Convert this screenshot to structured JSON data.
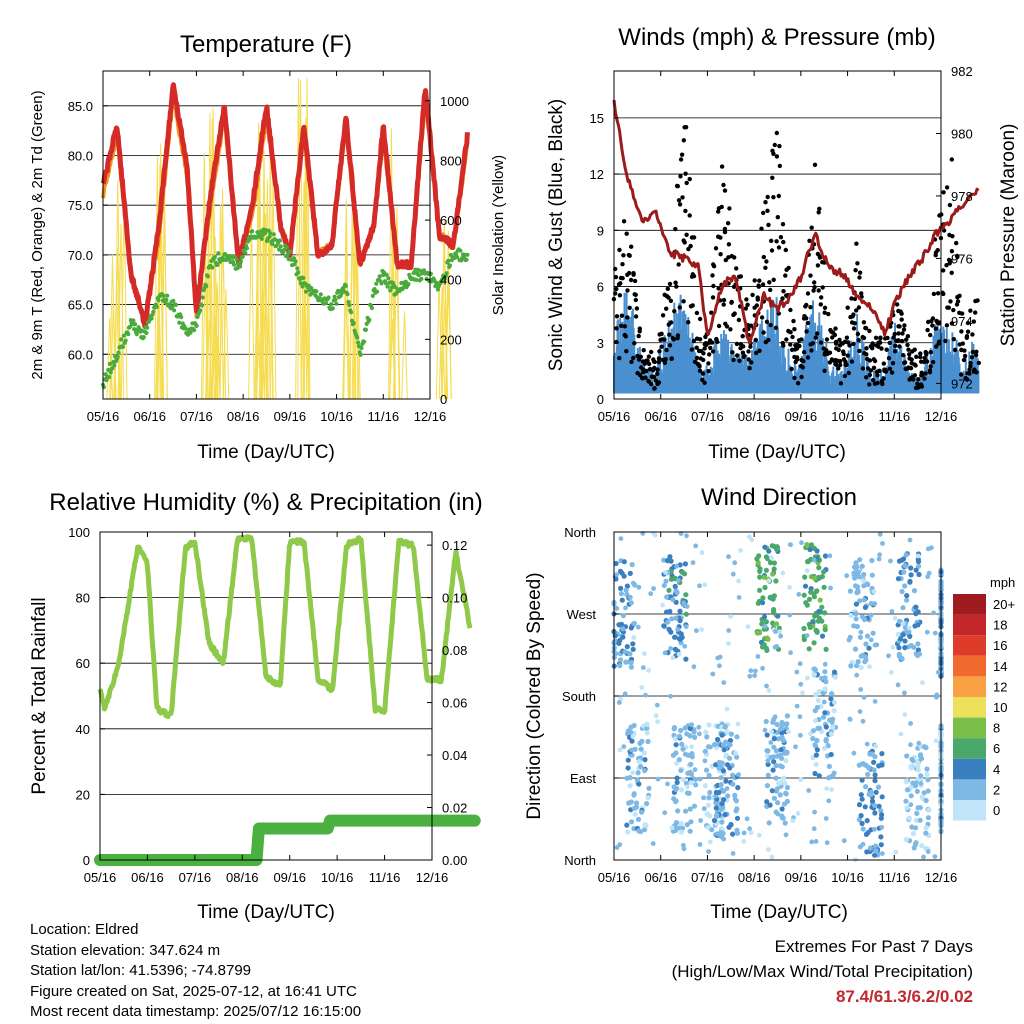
{
  "panels": {
    "temperature": {
      "title": "Temperature (F)",
      "ylabel_left": "2m & 9m T (Red, Orange) & 2m Td (Green)",
      "ylabel_right": "Solar Insolation (Yellow)",
      "xlabel": "Time (Day/UTC)"
    },
    "winds": {
      "title": "Winds (mph) & Pressure (mb)",
      "ylabel_left": "Sonic Wind & Gust (Blue, Black)",
      "ylabel_right": "Station Pressure (Maroon)",
      "xlabel": "Time (Day/UTC)"
    },
    "humidity": {
      "title": "Relative Humidity (%) & Precipitation (in)",
      "ylabel_left": "Percent & Total Rainfall",
      "xlabel": "Time (Day/UTC)"
    },
    "direction": {
      "title": "Wind Direction",
      "ylabel_left": "Direction (Colored By Speed)",
      "xlabel": "Time (Day/UTC)"
    }
  },
  "x_ticks": [
    "05/16",
    "06/16",
    "07/16",
    "08/16",
    "09/16",
    "10/16",
    "11/16",
    "12/16"
  ],
  "legend": {
    "title": "mph",
    "labels": [
      "20+",
      "18",
      "16",
      "14",
      "12",
      "10",
      "8",
      "6",
      "4",
      "2",
      "0"
    ],
    "colors": [
      "#9e1b1f",
      "#c3262a",
      "#de3b2a",
      "#f26b2e",
      "#f9a044",
      "#ede05b",
      "#7bbf4b",
      "#4aa86a",
      "#3a7fc0",
      "#7eb8e4",
      "#c0e4f8"
    ]
  },
  "info": {
    "location": "Location: Eldred",
    "elevation": "Station elevation: 347.624 m",
    "latlon": "Station lat/lon: 41.5396; -74.8799",
    "created": "Figure created on Sat, 2025-07-12, at 16:41 UTC",
    "latest": "Most recent data timestamp: 2025/07/12 16:15:00"
  },
  "extremes": {
    "line1": "Extremes For Past 7 Days",
    "line2": "(High/Low/Max Wind/Total Precipitation)",
    "values": "87.4/61.3/6.2/0.02"
  },
  "chart_data": [
    {
      "type": "line",
      "title": "Temperature (F)",
      "xlabel": "Time (Day/UTC)",
      "x_categories": [
        "05/16",
        "06/16",
        "07/16",
        "08/16",
        "09/16",
        "10/16",
        "11/16",
        "12/16"
      ],
      "ylim": [
        55.5,
        88.5
      ],
      "yticks": [
        60.0,
        65.0,
        70.0,
        75.0,
        80.0,
        85.0
      ],
      "y2lim": [
        0,
        1100
      ],
      "y2ticks": [
        0,
        200,
        400,
        600,
        800,
        1000
      ],
      "grid": true,
      "series": [
        {
          "name": "2m T",
          "color": "#d42a28",
          "x": [
            5.0,
            5.3,
            5.6,
            5.9,
            6.2,
            6.5,
            6.8,
            7.0,
            7.3,
            7.6,
            7.9,
            8.2,
            8.5,
            8.8,
            9.0,
            9.3,
            9.6,
            9.9,
            10.2,
            10.5,
            10.8,
            11.0,
            11.3,
            11.6,
            11.9,
            12.2,
            12.5,
            12.8
          ],
          "y": [
            77,
            83,
            68,
            63,
            73,
            87,
            79,
            64,
            76,
            85,
            69,
            75,
            85,
            73,
            70,
            83,
            70,
            71,
            84,
            69,
            73,
            83,
            69,
            69,
            87,
            72,
            71,
            82
          ]
        },
        {
          "name": "9m T",
          "color": "#f4921e",
          "x": [
            5.0,
            5.3,
            5.6,
            5.9,
            6.2,
            6.5,
            6.8,
            7.0,
            7.3,
            7.6,
            7.9,
            8.2,
            8.5,
            8.8,
            9.0,
            9.3,
            9.6,
            9.9,
            10.2,
            10.5,
            10.8,
            11.0,
            11.3,
            11.6,
            11.9,
            12.2,
            12.5,
            12.8
          ],
          "y": [
            76,
            82,
            68,
            63,
            72,
            86,
            78,
            64,
            75,
            84,
            69,
            74,
            84,
            73,
            70,
            82,
            70,
            71,
            83,
            69,
            73,
            82,
            69,
            69,
            86,
            72,
            71,
            81
          ]
        },
        {
          "name": "2m Td",
          "color": "#4aaa3a",
          "x": [
            5.0,
            5.3,
            5.6,
            5.9,
            6.2,
            6.5,
            6.8,
            7.0,
            7.3,
            7.6,
            7.9,
            8.2,
            8.5,
            8.8,
            9.0,
            9.3,
            9.6,
            9.9,
            10.2,
            10.5,
            10.8,
            11.0,
            11.3,
            11.6,
            11.9,
            12.2,
            12.5,
            12.8
          ],
          "y": [
            57,
            60,
            63,
            62,
            66,
            65,
            62,
            63,
            69,
            70,
            69,
            72,
            72,
            71,
            70,
            67,
            66,
            65,
            67,
            60,
            66,
            68,
            66,
            68,
            68,
            67,
            70,
            70
          ]
        },
        {
          "name": "Solar Insolation",
          "axis": "right",
          "color": "#f5dc50",
          "x": [
            5.3,
            6.3,
            7.3,
            7.5,
            8.3,
            8.5,
            9.3,
            10.3,
            11.3,
            12.3
          ],
          "y": [
            920,
            870,
            1000,
            750,
            950,
            850,
            1080,
            780,
            1000,
            720
          ]
        }
      ]
    },
    {
      "type": "line",
      "title": "Winds (mph) & Pressure (mb)",
      "xlabel": "Time (Day/UTC)",
      "x_categories": [
        "05/16",
        "06/16",
        "07/16",
        "08/16",
        "09/16",
        "10/16",
        "11/16",
        "12/16"
      ],
      "ylim": [
        0,
        17.5
      ],
      "yticks": [
        0,
        3,
        6,
        9,
        12,
        15
      ],
      "y2lim": [
        971.5,
        982
      ],
      "y2ticks": [
        972,
        974,
        976,
        978,
        980,
        982
      ],
      "grid": true,
      "series": [
        {
          "name": "Station Pressure",
          "axis": "right",
          "color": "#9b1b1b",
          "x": [
            5.0,
            5.3,
            5.6,
            5.9,
            6.2,
            6.5,
            6.8,
            7.0,
            7.3,
            7.6,
            7.9,
            8.2,
            8.5,
            8.8,
            9.0,
            9.3,
            9.6,
            9.9,
            10.2,
            10.5,
            10.8,
            11.0,
            11.3,
            11.6,
            11.9,
            12.2,
            12.5,
            12.8
          ],
          "y": [
            981,
            978.5,
            977.2,
            977.4,
            976.2,
            976,
            975.8,
            973.5,
            975.1,
            975.5,
            973.2,
            974.8,
            974.4,
            974.8,
            975.4,
            976.8,
            975.7,
            975.5,
            974.8,
            974.4,
            973.6,
            974.5,
            975.4,
            976,
            976.8,
            977.2,
            977.8,
            978.2
          ]
        },
        {
          "name": "Sonic Wind",
          "color": "#4a90d0",
          "x": [
            5.0,
            5.3,
            5.6,
            5.9,
            6.2,
            6.5,
            6.8,
            7.0,
            7.3,
            7.6,
            7.9,
            8.2,
            8.5,
            8.8,
            9.0,
            9.3,
            9.6,
            9.9,
            10.2,
            10.5,
            10.8,
            11.0,
            11.3,
            11.6,
            11.9,
            12.2,
            12.5,
            12.8
          ],
          "y": [
            2.5,
            4.5,
            1.5,
            1.2,
            3.5,
            4.0,
            1.5,
            1.2,
            3.0,
            1.8,
            1.6,
            3.5,
            4.0,
            1.2,
            1.6,
            4.5,
            1.5,
            1.2,
            3.2,
            1.0,
            1.2,
            2.8,
            1.2,
            1.0,
            3.0,
            2.8,
            1.4,
            2.6
          ]
        },
        {
          "name": "Gust",
          "color": "#000000",
          "x": [
            5.0,
            5.3,
            5.6,
            5.9,
            6.2,
            6.5,
            6.8,
            7.0,
            7.3,
            7.6,
            7.9,
            8.2,
            8.5,
            8.8,
            9.0,
            9.3,
            9.6,
            9.9,
            10.2,
            10.5,
            10.8,
            11.0,
            11.3,
            11.6,
            11.9,
            12.2,
            12.5,
            12.8
          ],
          "y": [
            8,
            9,
            3,
            2,
            7,
            15,
            4,
            3,
            12,
            7,
            4,
            10,
            14,
            4,
            3,
            12,
            4,
            3,
            8,
            3,
            3,
            6,
            3,
            2,
            9,
            12,
            3,
            6
          ]
        }
      ]
    },
    {
      "type": "line",
      "title": "Relative Humidity (%) & Precipitation (in)",
      "xlabel": "Time (Day/UTC)",
      "x_categories": [
        "05/16",
        "06/16",
        "07/16",
        "08/16",
        "09/16",
        "10/16",
        "11/16",
        "12/16"
      ],
      "ylim": [
        0,
        100
      ],
      "yticks": [
        0,
        20,
        40,
        60,
        80,
        100
      ],
      "y2lim": [
        0,
        0.125
      ],
      "y2ticks": [
        0.0,
        0.02,
        0.04,
        0.06,
        0.08,
        0.1,
        0.12
      ],
      "grid": true,
      "series": [
        {
          "name": "Relative Humidity",
          "color": "#8fc94a",
          "x": [
            5.0,
            5.1,
            5.4,
            5.8,
            6.0,
            6.2,
            6.5,
            6.8,
            7.0,
            7.3,
            7.6,
            7.9,
            8.2,
            8.5,
            8.8,
            9.0,
            9.3,
            9.6,
            9.9,
            10.2,
            10.5,
            10.8,
            11.0,
            11.3,
            11.6,
            11.9,
            12.2,
            12.5,
            12.8
          ],
          "y": [
            52,
            46,
            60,
            96,
            90,
            46,
            44,
            95,
            97,
            66,
            60,
            98,
            98,
            56,
            53,
            97,
            97,
            55,
            52,
            96,
            98,
            46,
            45,
            97,
            96,
            55,
            55,
            94,
            71
          ]
        },
        {
          "name": "Total Precipitation",
          "axis": "right",
          "color": "#4ab140",
          "x": [
            5.0,
            8.3,
            8.35,
            9.8,
            9.85,
            12.9
          ],
          "y": [
            0.0,
            0.0,
            0.012,
            0.012,
            0.015,
            0.015
          ]
        }
      ]
    },
    {
      "type": "scatter",
      "title": "Wind Direction",
      "xlabel": "Time (Day/UTC)",
      "x_categories": [
        "05/16",
        "06/16",
        "07/16",
        "08/16",
        "09/16",
        "10/16",
        "11/16",
        "12/16"
      ],
      "yticks": [
        "North",
        "East",
        "South",
        "West",
        "North"
      ],
      "ylim": [
        0,
        360
      ],
      "grid": true,
      "series": [
        {
          "name": "Direction",
          "x": [
            5.2,
            5.5,
            6.3,
            6.5,
            7.2,
            7.4,
            8.3,
            8.5,
            9.3,
            9.5,
            10.3,
            10.5,
            11.3,
            11.5,
            12.3,
            12.6
          ],
          "y": [
            270,
            90,
            280,
            90,
            90,
            80,
            285,
            100,
            290,
            150,
            270,
            60,
            280,
            70,
            260,
            90
          ],
          "speed": [
            3,
            2,
            4,
            2,
            1,
            3,
            6,
            2,
            6,
            2,
            2,
            3,
            3,
            1,
            3,
            2
          ]
        }
      ]
    }
  ]
}
